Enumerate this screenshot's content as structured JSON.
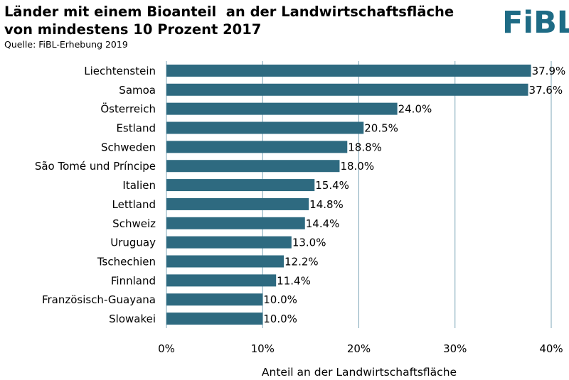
{
  "header": {
    "title_line1": "Länder mit einem Bioanteil  an der Landwirtschaftsfläche",
    "title_line2": "von mindestens 10 Prozent 2017",
    "source": "Quelle: FiBL-Erhebung 2019",
    "logo_text": "FiBL"
  },
  "colors": {
    "bar": "#2e6a80",
    "logo": "#1e6b85",
    "grid": "#7fa7b8"
  },
  "chart_data": {
    "type": "bar",
    "orientation": "horizontal",
    "title": "Länder mit einem Bioanteil  an der Landwirtschaftsfläche von mindestens 10 Prozent 2017",
    "xlabel": "Anteil an der Landwirtschaftsfläche",
    "ylabel": "",
    "xlim": [
      0,
      40
    ],
    "xticks": [
      "0%",
      "10%",
      "20%",
      "30%",
      "40%"
    ],
    "grid": true,
    "categories": [
      "Liechtenstein",
      "Samoa",
      "Österreich",
      "Estland",
      "Schweden",
      "São Tomé und Príncipe",
      "Italien",
      "Lettland",
      "Schweiz",
      "Uruguay",
      "Tschechien",
      "Finnland",
      "Französisch-Guayana",
      "Slowakei"
    ],
    "values": [
      37.9,
      37.6,
      24.0,
      20.5,
      18.8,
      18.0,
      15.4,
      14.8,
      14.4,
      13.0,
      12.2,
      11.4,
      10.0,
      10.0
    ],
    "data_labels": [
      "37.9%",
      "37.6%",
      "24.0%",
      "20.5%",
      "18.8%",
      "18.0%",
      "15.4%",
      "14.8%",
      "14.4%",
      "13.0%",
      "12.2%",
      "11.4%",
      "10.0%",
      "10.0%"
    ]
  }
}
